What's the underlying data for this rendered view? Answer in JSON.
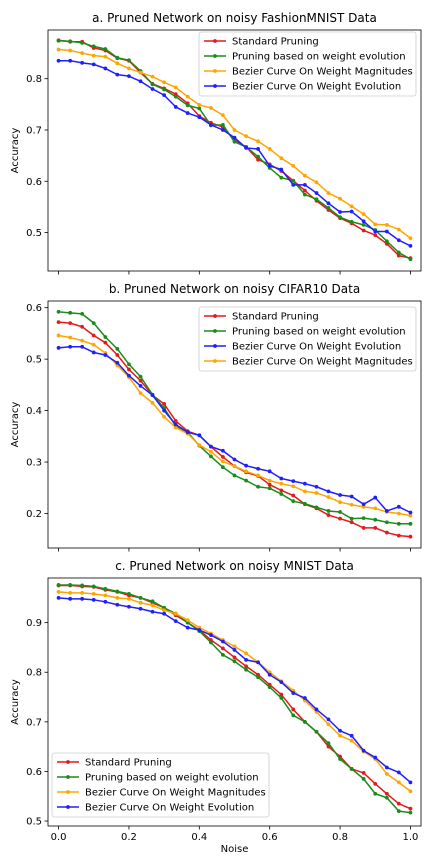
{
  "figure": {
    "xlabel": "Noise",
    "ylabel": "Accuracy"
  },
  "colors": {
    "red": "#e41a1c",
    "green": "#1a8c1a",
    "orange": "#ffa500",
    "blue": "#1f1fff"
  },
  "chart_data": [
    {
      "type": "line",
      "title": "a. Pruned Network on noisy FashionMNIST Data",
      "xlabel": "",
      "ylabel": "Accuracy",
      "xlim": [
        -0.03,
        1.03
      ],
      "ylim": [
        0.425,
        0.895
      ],
      "xticks": [
        0.0,
        0.2,
        0.4,
        0.6,
        0.8,
        1.0
      ],
      "yticks": [
        0.5,
        0.6,
        0.7,
        0.8
      ],
      "show_xticklabels": false,
      "legend_position": "top-right",
      "legend_order": [
        0,
        1,
        2,
        3
      ],
      "x": [
        0.0,
        0.033,
        0.067,
        0.1,
        0.133,
        0.167,
        0.2,
        0.233,
        0.267,
        0.3,
        0.333,
        0.367,
        0.4,
        0.433,
        0.467,
        0.5,
        0.533,
        0.567,
        0.6,
        0.633,
        0.667,
        0.7,
        0.733,
        0.767,
        0.8,
        0.833,
        0.867,
        0.9,
        0.933,
        0.967,
        1.0
      ],
      "series": [
        {
          "name": "Standard Pruning",
          "color": "red",
          "values": [
            0.875,
            0.872,
            0.872,
            0.86,
            0.855,
            0.84,
            0.835,
            0.812,
            0.79,
            0.781,
            0.77,
            0.752,
            0.727,
            0.714,
            0.706,
            0.68,
            0.667,
            0.642,
            0.633,
            0.62,
            0.601,
            0.582,
            0.562,
            0.544,
            0.528,
            0.518,
            0.504,
            0.495,
            0.478,
            0.455,
            0.45
          ]
        },
        {
          "name": "Pruning based on weight evolution",
          "color": "green",
          "values": [
            0.874,
            0.873,
            0.87,
            0.863,
            0.858,
            0.841,
            0.836,
            0.815,
            0.789,
            0.779,
            0.765,
            0.748,
            0.742,
            0.709,
            0.71,
            0.677,
            0.667,
            0.648,
            0.626,
            0.607,
            0.601,
            0.574,
            0.565,
            0.548,
            0.53,
            0.521,
            0.515,
            0.505,
            0.483,
            0.461,
            0.448
          ]
        },
        {
          "name": "Bezier Curve On Weight Magnitudes",
          "color": "orange",
          "values": [
            0.857,
            0.855,
            0.85,
            0.845,
            0.843,
            0.83,
            0.82,
            0.812,
            0.804,
            0.793,
            0.783,
            0.765,
            0.749,
            0.743,
            0.729,
            0.7,
            0.688,
            0.678,
            0.663,
            0.645,
            0.63,
            0.611,
            0.598,
            0.577,
            0.566,
            0.551,
            0.536,
            0.516,
            0.515,
            0.506,
            0.489
          ]
        },
        {
          "name": "Bezier Curve On Weight Evolution",
          "color": "blue",
          "values": [
            0.835,
            0.835,
            0.831,
            0.828,
            0.82,
            0.808,
            0.805,
            0.795,
            0.78,
            0.768,
            0.745,
            0.733,
            0.725,
            0.71,
            0.7,
            0.685,
            0.665,
            0.663,
            0.63,
            0.623,
            0.593,
            0.593,
            0.577,
            0.557,
            0.54,
            0.541,
            0.522,
            0.502,
            0.502,
            0.485,
            0.474
          ]
        }
      ]
    },
    {
      "type": "line",
      "title": "b. Pruned Network on noisy CIFAR10 Data",
      "xlabel": "",
      "ylabel": "Accuracy",
      "xlim": [
        -0.03,
        1.03
      ],
      "ylim": [
        0.133,
        0.613
      ],
      "xticks": [
        0.0,
        0.2,
        0.4,
        0.6,
        0.8,
        1.0
      ],
      "yticks": [
        0.2,
        0.3,
        0.4,
        0.5,
        0.6
      ],
      "show_xticklabels": false,
      "legend_position": "top-right",
      "legend_order": [
        0,
        1,
        3,
        2
      ],
      "x": [
        0.0,
        0.033,
        0.067,
        0.1,
        0.133,
        0.167,
        0.2,
        0.233,
        0.267,
        0.3,
        0.333,
        0.367,
        0.4,
        0.433,
        0.467,
        0.5,
        0.533,
        0.567,
        0.6,
        0.633,
        0.667,
        0.7,
        0.733,
        0.767,
        0.8,
        0.833,
        0.867,
        0.9,
        0.933,
        0.967,
        1.0
      ],
      "series": [
        {
          "name": "Standard Pruning",
          "color": "red",
          "values": [
            0.572,
            0.57,
            0.563,
            0.546,
            0.532,
            0.508,
            0.48,
            0.458,
            0.43,
            0.413,
            0.38,
            0.36,
            0.352,
            0.33,
            0.31,
            0.292,
            0.28,
            0.273,
            0.256,
            0.245,
            0.235,
            0.218,
            0.21,
            0.197,
            0.19,
            0.183,
            0.172,
            0.172,
            0.163,
            0.157,
            0.155
          ]
        },
        {
          "name": "Pruning based on weight evolution",
          "color": "green",
          "values": [
            0.592,
            0.59,
            0.588,
            0.57,
            0.543,
            0.52,
            0.49,
            0.466,
            0.431,
            0.405,
            0.37,
            0.358,
            0.332,
            0.311,
            0.29,
            0.274,
            0.264,
            0.252,
            0.249,
            0.238,
            0.224,
            0.219,
            0.212,
            0.205,
            0.203,
            0.19,
            0.191,
            0.188,
            0.183,
            0.18,
            0.18
          ]
        },
        {
          "name": "Bezier Curve On Weight Magnitudes",
          "color": "orange",
          "values": [
            0.546,
            0.542,
            0.536,
            0.528,
            0.512,
            0.488,
            0.465,
            0.434,
            0.415,
            0.388,
            0.367,
            0.355,
            0.333,
            0.32,
            0.301,
            0.292,
            0.282,
            0.274,
            0.264,
            0.258,
            0.253,
            0.243,
            0.24,
            0.232,
            0.222,
            0.217,
            0.213,
            0.21,
            0.203,
            0.2,
            0.196
          ]
        },
        {
          "name": "Bezier Curve On Weight Evolution",
          "color": "blue",
          "values": [
            0.522,
            0.524,
            0.524,
            0.513,
            0.508,
            0.493,
            0.468,
            0.448,
            0.43,
            0.4,
            0.373,
            0.358,
            0.352,
            0.33,
            0.322,
            0.305,
            0.293,
            0.287,
            0.282,
            0.268,
            0.263,
            0.258,
            0.252,
            0.243,
            0.236,
            0.233,
            0.218,
            0.231,
            0.205,
            0.213,
            0.202
          ]
        }
      ]
    },
    {
      "type": "line",
      "title": "c. Pruned Network on noisy MNIST Data",
      "xlabel": "Noise",
      "ylabel": "Accuracy",
      "xlim": [
        -0.03,
        1.03
      ],
      "ylim": [
        0.49,
        0.99
      ],
      "xticks": [
        0.0,
        0.2,
        0.4,
        0.6,
        0.8,
        1.0
      ],
      "xticklabels": [
        "0.0",
        "0.2",
        "0.4",
        "0.6",
        "0.8",
        "1.0"
      ],
      "yticks": [
        0.5,
        0.6,
        0.7,
        0.8,
        0.9
      ],
      "show_xticklabels": true,
      "legend_position": "bottom-left",
      "legend_order": [
        0,
        1,
        2,
        3
      ],
      "x": [
        0.0,
        0.033,
        0.067,
        0.1,
        0.133,
        0.167,
        0.2,
        0.233,
        0.267,
        0.3,
        0.333,
        0.367,
        0.4,
        0.433,
        0.467,
        0.5,
        0.533,
        0.567,
        0.6,
        0.633,
        0.667,
        0.7,
        0.733,
        0.767,
        0.8,
        0.833,
        0.867,
        0.9,
        0.933,
        0.967,
        1.0
      ],
      "series": [
        {
          "name": "Standard Pruning",
          "color": "red",
          "values": [
            0.975,
            0.975,
            0.973,
            0.972,
            0.966,
            0.962,
            0.955,
            0.95,
            0.94,
            0.93,
            0.915,
            0.9,
            0.885,
            0.865,
            0.848,
            0.83,
            0.812,
            0.795,
            0.775,
            0.755,
            0.725,
            0.7,
            0.68,
            0.65,
            0.63,
            0.605,
            0.597,
            0.575,
            0.555,
            0.535,
            0.525
          ]
        },
        {
          "name": "Pruning based on weight evolution",
          "color": "green",
          "values": [
            0.976,
            0.976,
            0.975,
            0.973,
            0.968,
            0.963,
            0.958,
            0.95,
            0.943,
            0.93,
            0.918,
            0.9,
            0.883,
            0.86,
            0.835,
            0.822,
            0.805,
            0.79,
            0.77,
            0.748,
            0.713,
            0.7,
            0.68,
            0.657,
            0.625,
            0.605,
            0.585,
            0.555,
            0.547,
            0.52,
            0.517
          ]
        },
        {
          "name": "Bezier Curve On Weight Magnitudes",
          "color": "orange",
          "values": [
            0.962,
            0.96,
            0.96,
            0.958,
            0.955,
            0.95,
            0.948,
            0.94,
            0.935,
            0.925,
            0.918,
            0.905,
            0.89,
            0.878,
            0.865,
            0.852,
            0.838,
            0.82,
            0.8,
            0.782,
            0.763,
            0.743,
            0.72,
            0.695,
            0.672,
            0.662,
            0.64,
            0.625,
            0.595,
            0.578,
            0.56
          ]
        },
        {
          "name": "Bezier Curve On Weight Evolution",
          "color": "blue",
          "values": [
            0.95,
            0.948,
            0.948,
            0.946,
            0.942,
            0.936,
            0.932,
            0.928,
            0.922,
            0.918,
            0.903,
            0.89,
            0.885,
            0.875,
            0.862,
            0.845,
            0.825,
            0.82,
            0.795,
            0.78,
            0.758,
            0.748,
            0.725,
            0.705,
            0.682,
            0.672,
            0.642,
            0.628,
            0.608,
            0.598,
            0.578
          ]
        }
      ]
    }
  ]
}
